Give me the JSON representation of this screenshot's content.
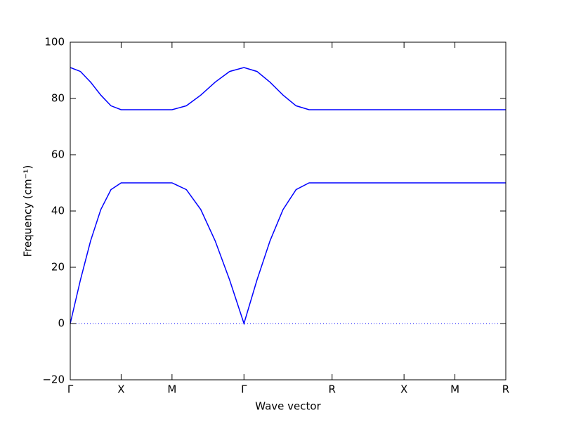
{
  "chart_data": {
    "type": "line",
    "xlabel": "Wave vector",
    "ylabel": "Frequency (cm⁻¹)",
    "xlim": [
      0,
      4.28
    ],
    "ylim": [
      -20,
      100
    ],
    "xticks": [
      {
        "value": 0,
        "label": "Γ"
      },
      {
        "value": 0.5,
        "label": "X"
      },
      {
        "value": 1.0,
        "label": "M"
      },
      {
        "value": 1.707,
        "label": "Γ"
      },
      {
        "value": 2.573,
        "label": "R"
      },
      {
        "value": 3.28,
        "label": "X"
      },
      {
        "value": 3.78,
        "label": "M"
      },
      {
        "value": 4.28,
        "label": "R"
      }
    ],
    "yticks": [
      {
        "value": -20,
        "label": "−20"
      },
      0,
      20,
      40,
      60,
      80,
      100
    ],
    "x": [
      0,
      0.1,
      0.2,
      0.3,
      0.4,
      0.5,
      1.0,
      1.141,
      1.283,
      1.424,
      1.566,
      1.707,
      1.835,
      1.963,
      2.091,
      2.219,
      2.347,
      2.573,
      3.28,
      3.78,
      4.28
    ],
    "series": [
      {
        "color": "#0000ff",
        "values": [
          0,
          15.5,
          29.4,
          40.5,
          47.6,
          50,
          50,
          47.6,
          40.5,
          29.4,
          15.5,
          0,
          15.5,
          29.4,
          40.5,
          47.6,
          50,
          50,
          50,
          50,
          50
        ]
      },
      {
        "color": "#0000ff",
        "values": [
          91,
          89.6,
          85.8,
          81.2,
          77.4,
          76,
          76,
          77.4,
          81.2,
          85.8,
          89.6,
          91,
          89.6,
          85.8,
          81.2,
          77.4,
          76,
          76,
          76,
          76,
          76
        ]
      }
    ],
    "zero_line": true
  }
}
